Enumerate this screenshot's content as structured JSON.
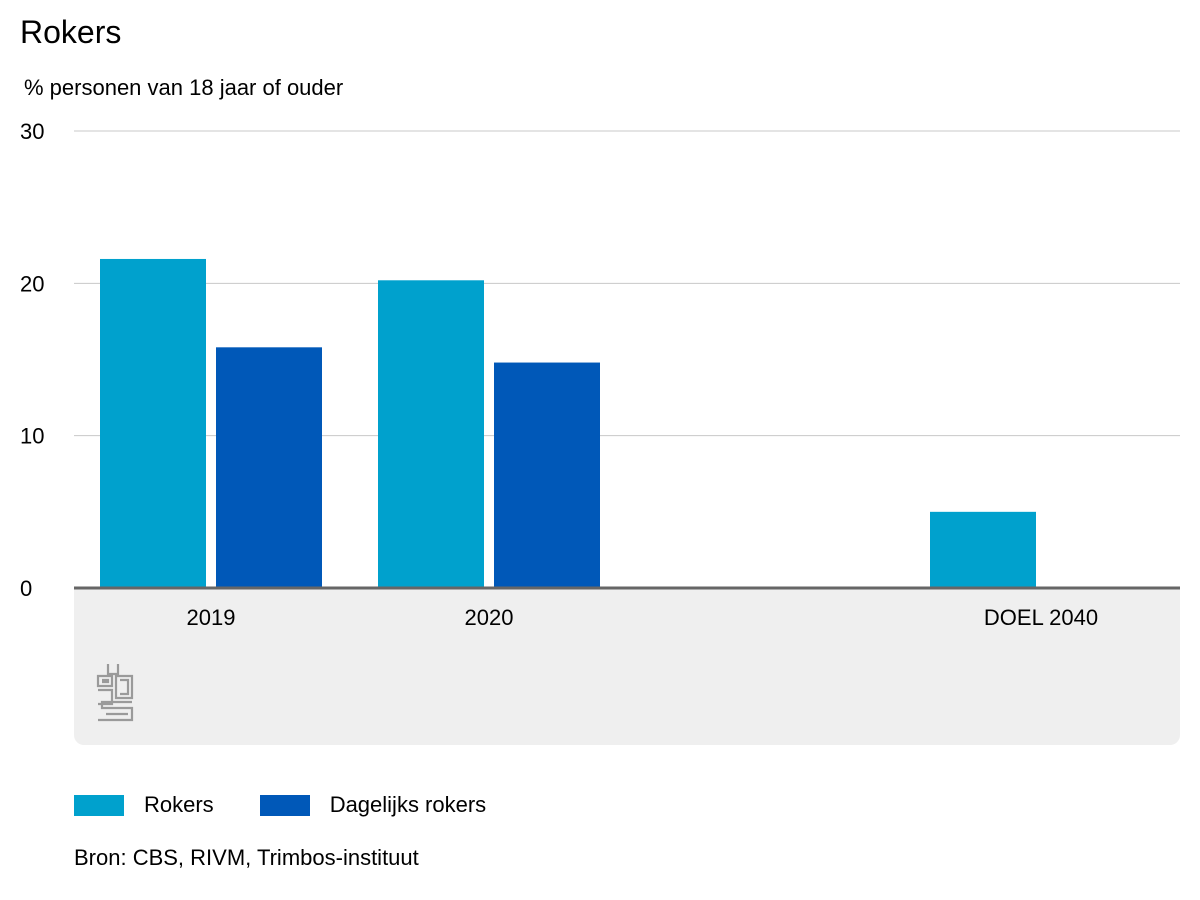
{
  "chart_data": {
    "type": "bar",
    "title": "Rokers",
    "subtitle": "% personen van 18 jaar of ouder",
    "categories": [
      "2019",
      "2020",
      "DOEL 2040"
    ],
    "series": [
      {
        "name": "Rokers",
        "color": "#00a1cd",
        "values": [
          21.6,
          20.2,
          5.0
        ]
      },
      {
        "name": "Dagelijks rokers",
        "color": "#0058b8",
        "values": [
          15.8,
          14.8,
          null
        ]
      }
    ],
    "ylim": [
      0,
      30
    ],
    "yticks": [
      0,
      10,
      20,
      30
    ],
    "grid": true,
    "legend": "bottom-left"
  },
  "source": "Bron: CBS, RIVM, Trimbos-instituut",
  "colors": {
    "grid": "#c8c8c8",
    "axis": "#666666",
    "footer_panel": "#efefef",
    "logo": "#9a9a9a"
  },
  "logo_icon": "cbs-logo-icon"
}
